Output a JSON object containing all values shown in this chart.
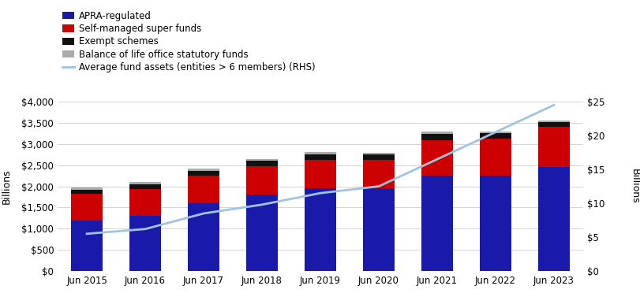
{
  "years": [
    "Jun 2015",
    "Jun 2016",
    "Jun 2017",
    "Jun 2018",
    "Jun 2019",
    "Jun 2020",
    "Jun 2021",
    "Jun 2022",
    "Jun 2023"
  ],
  "apra_regulated": [
    1200,
    1300,
    1600,
    1800,
    1950,
    1950,
    2250,
    2250,
    2450
  ],
  "self_managed": [
    620,
    630,
    650,
    680,
    680,
    680,
    830,
    870,
    950
  ],
  "exempt_schemes": [
    100,
    120,
    110,
    120,
    130,
    120,
    155,
    130,
    110
  ],
  "life_office": [
    50,
    50,
    55,
    50,
    50,
    50,
    55,
    50,
    50
  ],
  "avg_fund_assets": [
    5.5,
    6.2,
    8.5,
    9.8,
    11.5,
    12.5,
    16.5,
    20.5,
    24.5
  ],
  "bar_colors": {
    "apra": "#1a1aaa",
    "smsf": "#cc0000",
    "exempt": "#111111",
    "life": "#aaaaaa"
  },
  "line_color": "#a0c4e0",
  "ylabel_left": "Billions",
  "ylabel_right": "Billions",
  "ylim_left": [
    0,
    4000
  ],
  "ylim_right": [
    0,
    25
  ],
  "yticks_left": [
    0,
    500,
    1000,
    1500,
    2000,
    2500,
    3000,
    3500,
    4000
  ],
  "yticks_right": [
    0,
    5,
    10,
    15,
    20,
    25
  ],
  "legend_labels": [
    "APRA-regulated",
    "Self-managed super funds",
    "Exempt schemes",
    "Balance of life office statutory funds",
    "Average fund assets (entities > 6 members) (RHS)"
  ],
  "background_color": "#ffffff"
}
